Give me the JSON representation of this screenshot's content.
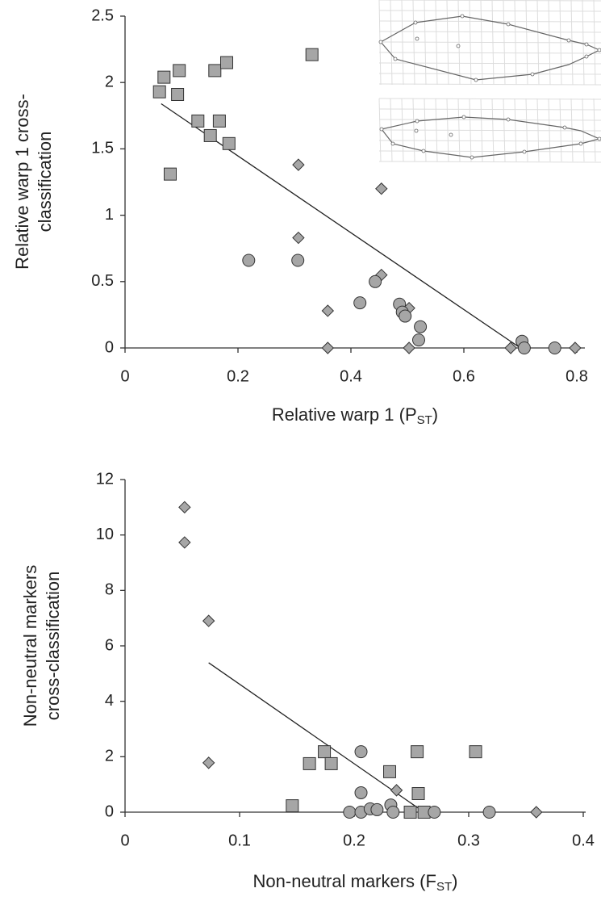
{
  "chart_data": [
    {
      "type": "scatter",
      "x_label": [
        "Relative warp 1 (P",
        "ST",
        ")"
      ],
      "y_label": [
        "Relative warp 1 cross-",
        "classification"
      ],
      "xlim": [
        0,
        0.8
      ],
      "xticks": [
        0,
        0.2,
        0.4,
        0.6,
        0.8
      ],
      "ylim": [
        0,
        2.5
      ],
      "yticks": [
        0,
        0.5,
        1,
        1.5,
        2,
        2.5
      ],
      "series": [
        {
          "marker": "square",
          "color": "#a6a6a6",
          "x": [
            0.061,
            0.069,
            0.096,
            0.093,
            0.129,
            0.159,
            0.18,
            0.167,
            0.151,
            0.184,
            0.08,
            0.331
          ],
          "y": [
            1.93,
            2.04,
            2.09,
            1.91,
            1.71,
            2.09,
            2.15,
            1.71,
            1.6,
            1.54,
            1.31,
            2.21
          ]
        },
        {
          "marker": "diamond",
          "color": "#a6a6a6",
          "x": [
            0.307,
            0.454,
            0.307,
            0.454,
            0.359,
            0.503,
            0.359,
            0.503,
            0.683,
            0.797
          ],
          "y": [
            1.38,
            1.2,
            0.83,
            0.55,
            0.28,
            0.3,
            0,
            0,
            0,
            0
          ]
        },
        {
          "marker": "circle",
          "color": "#a6a6a6",
          "x": [
            0.219,
            0.306,
            0.416,
            0.443,
            0.486,
            0.491,
            0.496,
            0.523,
            0.52,
            0.703,
            0.707,
            0.761
          ],
          "y": [
            0.66,
            0.66,
            0.34,
            0.5,
            0.33,
            0.27,
            0.24,
            0.16,
            0.06,
            0.05,
            0,
            0
          ]
        }
      ],
      "trend_line": {
        "x": [
          0.064,
          0.7
        ],
        "y": [
          1.84,
          0
        ]
      }
    },
    {
      "type": "scatter",
      "x_label": [
        "Non-neutral markers (F",
        "ST",
        ")"
      ],
      "y_label": [
        "Non-neutral markers",
        "cross-classification"
      ],
      "xlim": [
        0,
        0.4
      ],
      "xticks": [
        0,
        0.1,
        0.2,
        0.3,
        0.4
      ],
      "ylim": [
        0,
        12
      ],
      "yticks": [
        0,
        2,
        4,
        6,
        8,
        10,
        12
      ],
      "series": [
        {
          "marker": "square",
          "color": "#a6a6a6",
          "x": [
            0.146,
            0.161,
            0.174,
            0.18,
            0.231,
            0.255,
            0.256,
            0.249,
            0.261,
            0.306
          ],
          "y": [
            0.23,
            1.75,
            2.18,
            1.75,
            1.46,
            2.18,
            0.67,
            0,
            0,
            2.18
          ]
        },
        {
          "marker": "diamond",
          "color": "#a6a6a6",
          "x": [
            0.052,
            0.052,
            0.073,
            0.073,
            0.237,
            0.359
          ],
          "y": [
            11,
            9.73,
            6.9,
            1.78,
            0.79,
            0
          ]
        },
        {
          "marker": "circle",
          "color": "#a6a6a6",
          "x": [
            0.206,
            0.206,
            0.196,
            0.206,
            0.214,
            0.22,
            0.232,
            0.234,
            0.27,
            0.318
          ],
          "y": [
            2.18,
            0.7,
            0,
            0,
            0.12,
            0.09,
            0.26,
            0,
            0,
            0
          ]
        }
      ],
      "trend_line": {
        "x": [
          0.073,
          0.261
        ],
        "y": [
          5.39,
          0
        ]
      }
    }
  ]
}
